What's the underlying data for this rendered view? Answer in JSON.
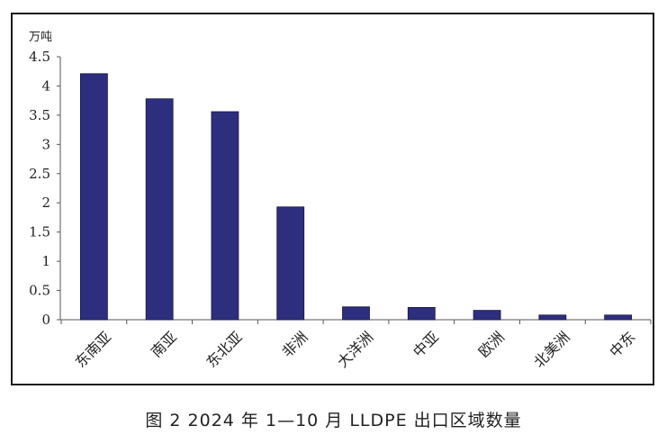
{
  "chart_data": {
    "type": "bar",
    "ylabel": "万吨",
    "ylim": [
      0,
      4.5
    ],
    "yticks": [
      0,
      0.5,
      1,
      1.5,
      2,
      2.5,
      3,
      3.5,
      4,
      4.5
    ],
    "ytick_labels": [
      "0",
      "0.5",
      "1",
      "1.5",
      "2",
      "2.5",
      "3",
      "3.5",
      "4",
      "4.5"
    ],
    "categories": [
      "东南亚",
      "南亚",
      "东北亚",
      "非洲",
      "大洋洲",
      "中亚",
      "欧洲",
      "北美洲",
      "中东"
    ],
    "values": [
      4.21,
      3.78,
      3.56,
      1.93,
      0.22,
      0.21,
      0.16,
      0.08,
      0.08
    ],
    "bar_color": "#2e2e7e",
    "grid": false,
    "legend": "none"
  },
  "caption": "图 2  2024 年 1—10 月 LLDPE 出口区域数量"
}
